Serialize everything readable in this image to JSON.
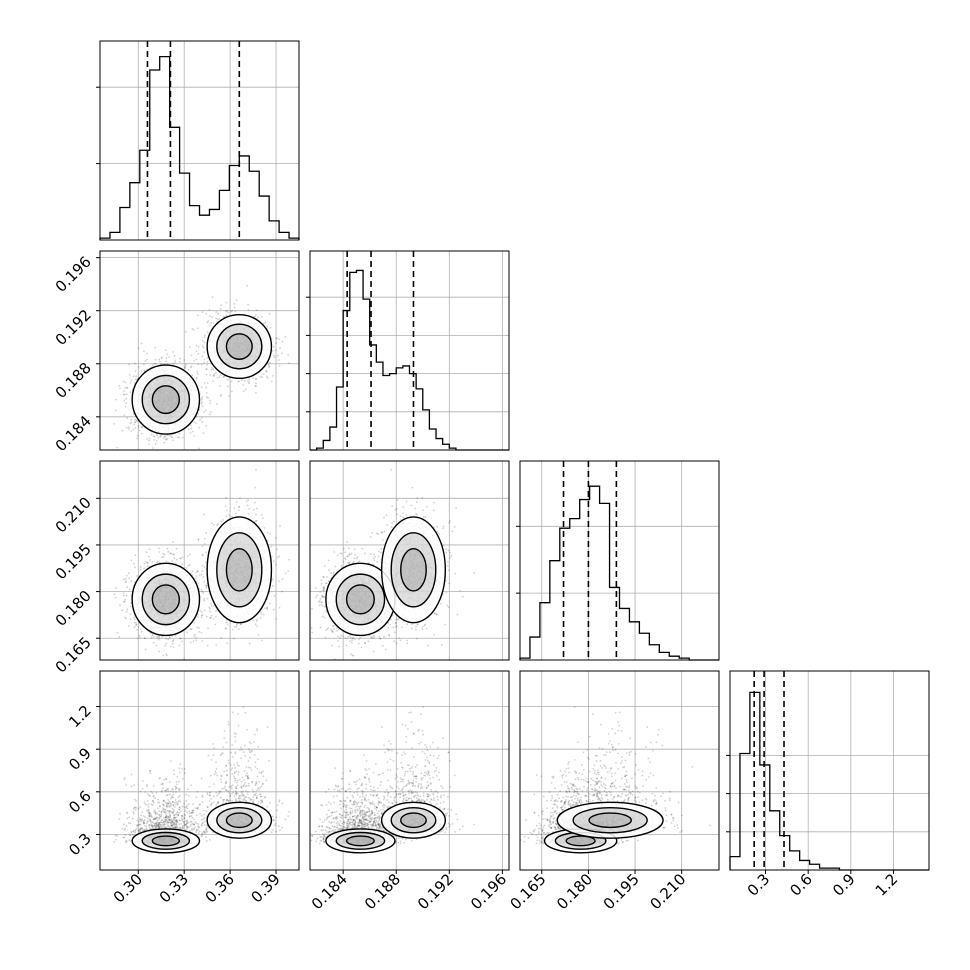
{
  "chart_data": {
    "type": "corner",
    "parameters": 4,
    "grid": true,
    "legend": "none",
    "colors": {
      "hist": "#000000",
      "points": "#000000",
      "density": "#000000",
      "grid": "#b0b0b0"
    },
    "ranges": [
      [
        0.275,
        0.405
      ],
      [
        0.1815,
        0.1965
      ],
      [
        0.158,
        0.222
      ],
      [
        0.05,
        1.45
      ]
    ],
    "ticks": [
      {
        "values": [
          0.3,
          0.33,
          0.36,
          0.39
        ],
        "labels": [
          "0.30",
          "0.33",
          "0.36",
          "0.39"
        ]
      },
      {
        "values": [
          0.184,
          0.188,
          0.192,
          0.196
        ],
        "labels": [
          "0.184",
          "0.188",
          "0.192",
          "0.196"
        ]
      },
      {
        "values": [
          0.165,
          0.18,
          0.195,
          0.21
        ],
        "labels": [
          "0.165",
          "0.180",
          "0.195",
          "0.210"
        ]
      },
      {
        "values": [
          0.3,
          0.6,
          0.9,
          1.2
        ],
        "labels": [
          "0.3",
          "0.6",
          "0.9",
          "1.2"
        ]
      }
    ],
    "quantiles": [
      [
        0.306,
        0.321,
        0.366
      ],
      [
        0.1843,
        0.1861,
        0.1893
      ],
      [
        0.172,
        0.18,
        0.189
      ],
      [
        0.22,
        0.29,
        0.43
      ]
    ],
    "histograms": [
      {
        "bin_edges": [
          0.275,
          0.2815,
          0.288,
          0.2945,
          0.301,
          0.3075,
          0.314,
          0.3205,
          0.327,
          0.3335,
          0.34,
          0.3465,
          0.353,
          0.3595,
          0.366,
          0.3725,
          0.379,
          0.3855,
          0.392,
          0.3985,
          0.405
        ],
        "counts": [
          0.01,
          0.04,
          0.17,
          0.3,
          0.47,
          0.89,
          0.96,
          0.59,
          0.35,
          0.18,
          0.13,
          0.16,
          0.26,
          0.39,
          0.44,
          0.36,
          0.23,
          0.1,
          0.04,
          0.01
        ],
        "yticks": [
          0.4,
          0.8
        ]
      },
      {
        "bin_edges": [
          0.1815,
          0.182,
          0.1825,
          0.183,
          0.1835,
          0.184,
          0.1845,
          0.185,
          0.1855,
          0.186,
          0.1865,
          0.187,
          0.1875,
          0.188,
          0.1885,
          0.189,
          0.1895,
          0.19,
          0.1905,
          0.191,
          0.1915,
          0.192,
          0.1925,
          0.193,
          0.1935,
          0.194,
          0.1945,
          0.195,
          0.1955,
          0.196,
          0.1965
        ],
        "counts": [
          0.0,
          0.01,
          0.05,
          0.12,
          0.33,
          0.73,
          0.93,
          0.94,
          0.79,
          0.55,
          0.46,
          0.39,
          0.4,
          0.43,
          0.44,
          0.4,
          0.32,
          0.21,
          0.11,
          0.06,
          0.03,
          0.01,
          0.0,
          0.0,
          0.0,
          0.0,
          0.0,
          0.0,
          0.0,
          0.0
        ],
        "yticks": [
          0.2,
          0.4,
          0.6,
          0.8
        ]
      },
      {
        "bin_edges": [
          0.158,
          0.1612,
          0.1644,
          0.1676,
          0.1708,
          0.174,
          0.1772,
          0.1804,
          0.1836,
          0.1868,
          0.19,
          0.1932,
          0.1964,
          0.1996,
          0.2028,
          0.206,
          0.2092,
          0.2124,
          0.2156,
          0.2188,
          0.222
        ],
        "counts": [
          0.01,
          0.12,
          0.3,
          0.52,
          0.69,
          0.74,
          0.84,
          0.91,
          0.82,
          0.38,
          0.27,
          0.2,
          0.14,
          0.08,
          0.04,
          0.02,
          0.01,
          0.0,
          0.0,
          0.0
        ],
        "yticks": [
          0.35,
          0.7
        ]
      },
      {
        "bin_edges": [
          0.05,
          0.12,
          0.19,
          0.26,
          0.33,
          0.4,
          0.47,
          0.54,
          0.61,
          0.68,
          0.75,
          0.82,
          0.89,
          0.96,
          1.03,
          1.1,
          1.17,
          1.24,
          1.31,
          1.38,
          1.45
        ],
        "counts": [
          0.07,
          0.61,
          0.93,
          0.55,
          0.31,
          0.18,
          0.1,
          0.05,
          0.03,
          0.01,
          0.01,
          0.0,
          0.0,
          0.0,
          0.0,
          0.0,
          0.0,
          0.0,
          0.0,
          0.0
        ],
        "yticks": [
          0.2,
          0.4,
          0.6
        ]
      }
    ],
    "clusters": [
      {
        "w": 0.58,
        "mean": [
          0.318,
          0.1853,
          0.1775,
          0.265
        ],
        "sd": [
          0.011,
          0.0013,
          0.0058,
          0.12
        ]
      },
      {
        "w": 0.42,
        "mean": [
          0.366,
          0.1893,
          0.187,
          0.36
        ],
        "sd": [
          0.0105,
          0.0012,
          0.0085,
          0.18
        ]
      }
    ]
  }
}
